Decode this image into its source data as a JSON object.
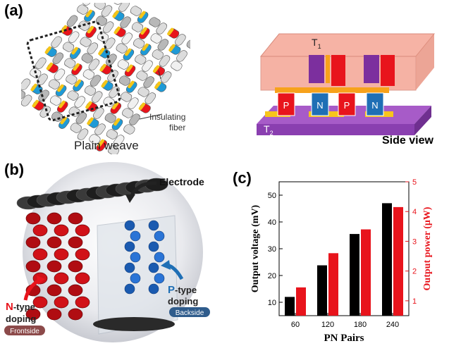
{
  "panels": {
    "a": {
      "label": "(a)",
      "weave_caption": "Plain weave",
      "insulating_label_line1": "Insulating",
      "insulating_label_line2": "fiber",
      "t1_label": "T",
      "t1_sub": "1",
      "t2_label": "T",
      "t2_sub": "2",
      "legs": [
        "P",
        "N",
        "P",
        "N"
      ],
      "side_view_caption": "Side view"
    },
    "b": {
      "label": "(b)",
      "electrode_label": "Electrode",
      "ntype_prefix": "N",
      "ntype_rest": "-type",
      "ntype_line2": "doping",
      "frontside_badge": "Frontside",
      "ptype_prefix": "P",
      "ptype_rest": "-type",
      "ptype_line2": "doping",
      "backside_badge": "Backside"
    },
    "c": {
      "label": "(c)"
    }
  },
  "colors": {
    "voltage_bar": "#000000",
    "power_bar": "#e8141c",
    "p_leg": "#e8141c",
    "n_leg": "#1f6fb5",
    "top_plate": "#f4a595",
    "bottom_plate": "#8a3fb0"
  },
  "chart_data": {
    "type": "bar",
    "categories": [
      "60",
      "120",
      "180",
      "240"
    ],
    "xlabel": "PN Pairs",
    "ylabel_left": "Output voltage (mV)",
    "ylabel_right": "Output power (μW)",
    "ylim_left": [
      5,
      55
    ],
    "ylim_right": [
      0.5,
      5
    ],
    "yticks_left": [
      "10",
      "20",
      "30",
      "40",
      "50"
    ],
    "yticks_right": [
      "1",
      "2",
      "3",
      "4",
      "5"
    ],
    "series": [
      {
        "name": "Output voltage (mV)",
        "axis": "left",
        "values": [
          12,
          23.8,
          35.5,
          47
        ]
      },
      {
        "name": "Output power (μW)",
        "axis": "right",
        "values": [
          1.45,
          2.6,
          3.4,
          4.15
        ]
      }
    ]
  }
}
